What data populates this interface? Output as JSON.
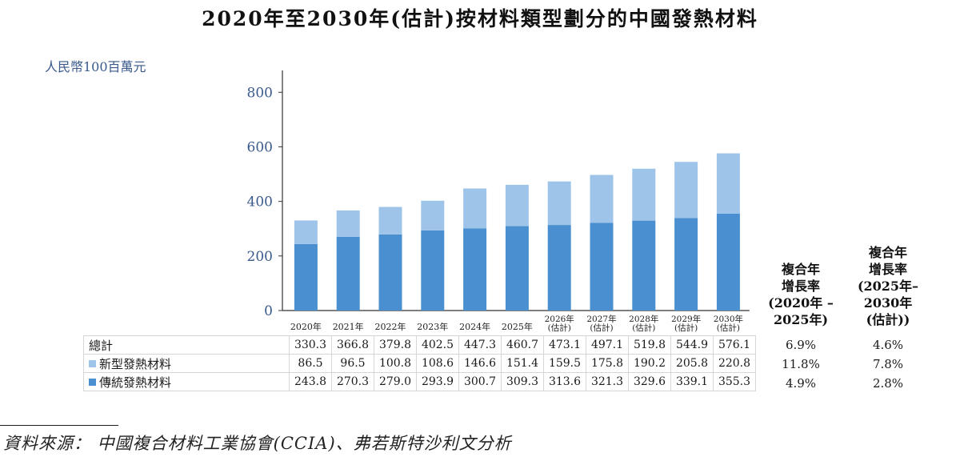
{
  "chart_data": {
    "type": "bar",
    "stacked": true,
    "title": "2020年至2030年(估計)按材料類型劃分的中國發熱材料",
    "ylabel": "人民幣100百萬元",
    "ylim": [
      0,
      880
    ],
    "yticks": [
      0,
      200,
      400,
      600,
      800
    ],
    "categories": [
      [
        "2020年"
      ],
      [
        "2021年"
      ],
      [
        "2022年"
      ],
      [
        "2023年"
      ],
      [
        "2024年"
      ],
      [
        "2025年"
      ],
      [
        "2026年",
        "(估計)"
      ],
      [
        "2027年",
        "(估計)"
      ],
      [
        "2028年",
        "(估計)"
      ],
      [
        "2029年",
        "(估計)"
      ],
      [
        "2030年",
        "(估計)"
      ]
    ],
    "series": [
      {
        "name": "傳統發熱材料",
        "color": "#4a8fcf",
        "values": [
          243.8,
          270.3,
          279.0,
          293.9,
          300.7,
          309.3,
          313.6,
          321.3,
          329.6,
          339.1,
          355.3
        ]
      },
      {
        "name": "新型發熱材料",
        "color": "#9fc4ea",
        "values": [
          86.5,
          96.5,
          100.8,
          108.6,
          146.6,
          151.4,
          159.5,
          175.8,
          190.2,
          205.8,
          220.8
        ]
      }
    ],
    "totals": [
      330.3,
      366.8,
      379.8,
      402.5,
      447.3,
      460.7,
      473.1,
      497.1,
      519.8,
      544.9,
      576.1
    ],
    "table_rows": [
      {
        "label": "總計",
        "values": [
          "330.3",
          "366.8",
          "379.8",
          "402.5",
          "447.3",
          "460.7",
          "473.1",
          "497.1",
          "519.8",
          "544.9",
          "576.1"
        ],
        "cagr1": "6.9%",
        "cagr2": "4.6%"
      },
      {
        "label": "新型發熱材料",
        "color": "#9fc4ea",
        "values": [
          "86.5",
          "96.5",
          "100.8",
          "108.6",
          "146.6",
          "151.4",
          "159.5",
          "175.8",
          "190.2",
          "205.8",
          "220.8"
        ],
        "cagr1": "11.8%",
        "cagr2": "7.8%"
      },
      {
        "label": "傳統發熱材料",
        "color": "#4a8fcf",
        "values": [
          "243.8",
          "270.3",
          "279.0",
          "293.9",
          "300.7",
          "309.3",
          "313.6",
          "321.3",
          "329.6",
          "339.1",
          "355.3"
        ],
        "cagr1": "4.9%",
        "cagr2": "2.8%"
      }
    ],
    "cagr_headers": [
      [
        "複合年",
        "增長率",
        "(2020年 –",
        "2025年)"
      ],
      [
        "複合年",
        "增長率",
        "(2025年–",
        "2030年",
        "(估計))"
      ]
    ]
  },
  "source": "資料來源： 中國複合材料工業協會(CCIA)、弗若斯特沙利文分析"
}
